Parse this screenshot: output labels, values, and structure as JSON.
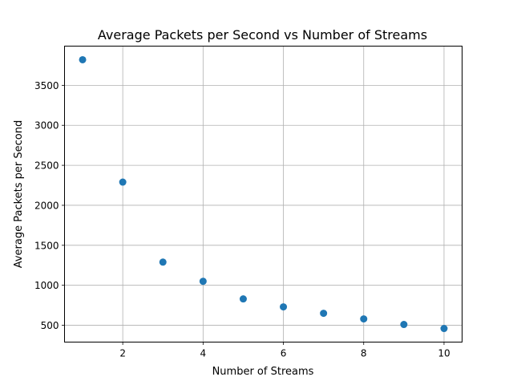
{
  "chart_data": {
    "type": "scatter",
    "title": "Average Packets per Second vs Number of Streams",
    "xlabel": "Number of Streams",
    "ylabel": "Average Packets per Second",
    "x": [
      1,
      2,
      3,
      4,
      5,
      6,
      7,
      8,
      9,
      10
    ],
    "y": [
      3820,
      2290,
      1290,
      1050,
      830,
      730,
      650,
      580,
      510,
      460
    ],
    "xlim": [
      0.55,
      10.45
    ],
    "ylim": [
      290,
      3990
    ],
    "xticks": [
      2,
      4,
      6,
      8,
      10
    ],
    "xtick_labels": [
      "2",
      "4",
      "6",
      "8",
      "10"
    ],
    "yticks": [
      500,
      1000,
      1500,
      2000,
      2500,
      3000,
      3500
    ],
    "ytick_labels": [
      "500",
      "1000",
      "1500",
      "2000",
      "2500",
      "3000",
      "3500"
    ],
    "grid": true,
    "marker_color": "#1f77b4",
    "grid_color": "#b0b0b0",
    "axes_color": "#000000"
  }
}
